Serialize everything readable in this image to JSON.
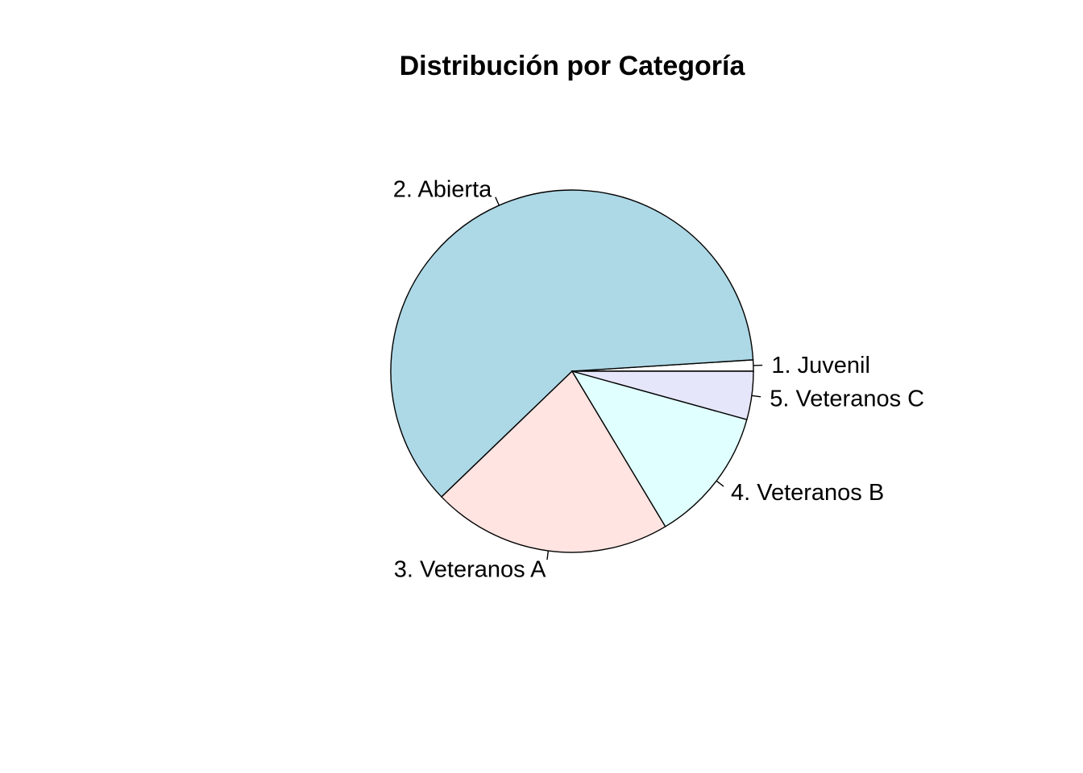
{
  "chart_data": {
    "type": "pie",
    "title": "Distribución por Categoría",
    "slices": [
      {
        "label": "1. Juvenil",
        "value": 1.0,
        "color": "#ffffff"
      },
      {
        "label": "2. Abierta",
        "value": 61.2,
        "color": "#add8e6"
      },
      {
        "label": "3. Veteranos A",
        "value": 21.4,
        "color": "#ffe4e1"
      },
      {
        "label": "4. Veteranos B",
        "value": 12.1,
        "color": "#e0ffff"
      },
      {
        "label": "5. Veteranos C",
        "value": 4.3,
        "color": "#e6e6fa"
      }
    ],
    "direction": "counterclockwise",
    "start": "3 o'clock",
    "legend": "none"
  }
}
